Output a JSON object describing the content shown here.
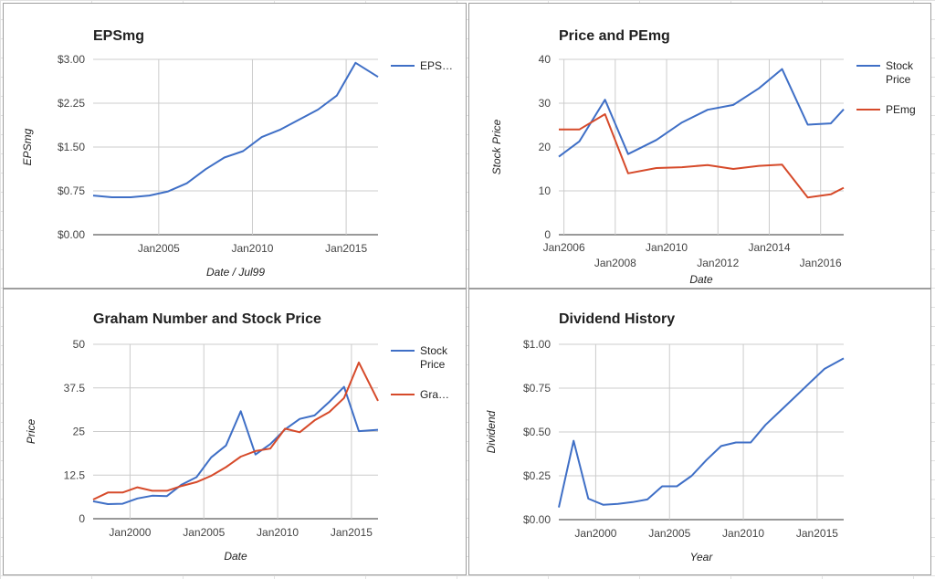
{
  "chart_data": [
    {
      "type": "line",
      "title": "EPSmg",
      "xlabel": "Date / Jul99",
      "ylabel": "EPSmg",
      "xlim": [
        2001.5,
        2016.7
      ],
      "ylim": [
        0,
        3
      ],
      "xticks": [
        {
          "v": 2005,
          "label": "Jan2005"
        },
        {
          "v": 2010,
          "label": "Jan2010"
        },
        {
          "v": 2015,
          "label": "Jan2015"
        }
      ],
      "yticks": [
        {
          "v": 0,
          "label": "$0.00"
        },
        {
          "v": 0.75,
          "label": "$0.75"
        },
        {
          "v": 1.5,
          "label": "$1.50"
        },
        {
          "v": 2.25,
          "label": "$2.25"
        },
        {
          "v": 3,
          "label": "$3.00"
        }
      ],
      "grid": true,
      "legend": "right",
      "series": [
        {
          "name": "EPS…",
          "color": "#3f6fc6",
          "points": [
            [
              2001.5,
              0.67
            ],
            [
              2002.5,
              0.64
            ],
            [
              2003.5,
              0.64
            ],
            [
              2004.5,
              0.67
            ],
            [
              2005.5,
              0.74
            ],
            [
              2006.5,
              0.88
            ],
            [
              2007.5,
              1.12
            ],
            [
              2008.5,
              1.32
            ],
            [
              2009.5,
              1.43
            ],
            [
              2010.5,
              1.67
            ],
            [
              2011.5,
              1.8
            ],
            [
              2012.5,
              1.97
            ],
            [
              2013.5,
              2.14
            ],
            [
              2014.5,
              2.38
            ],
            [
              2015.5,
              2.94
            ],
            [
              2016.7,
              2.7
            ]
          ]
        }
      ]
    },
    {
      "type": "line",
      "title": "Price and PEmg",
      "xlabel": "Date",
      "ylabel": "Stock Price",
      "xlim": [
        2005.8,
        2016.9
      ],
      "ylim": [
        0,
        40
      ],
      "xticks": [
        {
          "v": 2006,
          "label": "Jan2006",
          "row": 0
        },
        {
          "v": 2008,
          "label": "Jan2008",
          "row": 1
        },
        {
          "v": 2010,
          "label": "Jan2010",
          "row": 0
        },
        {
          "v": 2012,
          "label": "Jan2012",
          "row": 1
        },
        {
          "v": 2014,
          "label": "Jan2014",
          "row": 0
        },
        {
          "v": 2016,
          "label": "Jan2016",
          "row": 1
        }
      ],
      "yticks": [
        {
          "v": 0,
          "label": "0"
        },
        {
          "v": 10,
          "label": "10"
        },
        {
          "v": 20,
          "label": "20"
        },
        {
          "v": 30,
          "label": "30"
        },
        {
          "v": 40,
          "label": "40"
        }
      ],
      "grid": true,
      "legend": "right",
      "series": [
        {
          "name": "Stock Price",
          "color": "#3f6fc6",
          "points": [
            [
              2005.8,
              17.8
            ],
            [
              2006.6,
              21.3
            ],
            [
              2007.6,
              30.8
            ],
            [
              2008.5,
              18.4
            ],
            [
              2009.6,
              21.6
            ],
            [
              2010.6,
              25.6
            ],
            [
              2011.6,
              28.5
            ],
            [
              2012.6,
              29.6
            ],
            [
              2013.6,
              33.4
            ],
            [
              2014.5,
              37.8
            ],
            [
              2015.5,
              25.1
            ],
            [
              2016.4,
              25.4
            ],
            [
              2016.9,
              28.6
            ]
          ]
        },
        {
          "name": "PEmg",
          "color": "#d64a2a",
          "points": [
            [
              2005.8,
              24.0
            ],
            [
              2006.6,
              24.0
            ],
            [
              2007.6,
              27.5
            ],
            [
              2008.5,
              14.0
            ],
            [
              2009.6,
              15.2
            ],
            [
              2010.6,
              15.4
            ],
            [
              2011.6,
              15.9
            ],
            [
              2012.6,
              15.0
            ],
            [
              2013.6,
              15.7
            ],
            [
              2014.5,
              16.0
            ],
            [
              2015.5,
              8.5
            ],
            [
              2016.4,
              9.2
            ],
            [
              2016.9,
              10.7
            ]
          ]
        }
      ]
    },
    {
      "type": "line",
      "title": "Graham Number and Stock Price",
      "xlabel": "Date",
      "ylabel": "Price",
      "xlim": [
        1997.5,
        2016.8
      ],
      "ylim": [
        0,
        50
      ],
      "xticks": [
        {
          "v": 2000,
          "label": "Jan2000"
        },
        {
          "v": 2005,
          "label": "Jan2005"
        },
        {
          "v": 2010,
          "label": "Jan2010"
        },
        {
          "v": 2015,
          "label": "Jan2015"
        }
      ],
      "yticks": [
        {
          "v": 0,
          "label": "0"
        },
        {
          "v": 12.5,
          "label": "12.5"
        },
        {
          "v": 25,
          "label": "25"
        },
        {
          "v": 37.5,
          "label": "37.5"
        },
        {
          "v": 50,
          "label": "50"
        }
      ],
      "grid": true,
      "legend": "right",
      "series": [
        {
          "name": "Stock Price",
          "color": "#3f6fc6",
          "points": [
            [
              1997.5,
              5.0
            ],
            [
              1998.5,
              4.2
            ],
            [
              1999.5,
              4.3
            ],
            [
              2000.5,
              5.8
            ],
            [
              2001.5,
              6.6
            ],
            [
              2002.5,
              6.5
            ],
            [
              2003.5,
              9.8
            ],
            [
              2004.5,
              11.9
            ],
            [
              2005.5,
              17.6
            ],
            [
              2006.5,
              21.0
            ],
            [
              2007.5,
              30.8
            ],
            [
              2008.5,
              18.4
            ],
            [
              2009.5,
              21.4
            ],
            [
              2010.5,
              25.6
            ],
            [
              2011.5,
              28.6
            ],
            [
              2012.5,
              29.6
            ],
            [
              2013.5,
              33.5
            ],
            [
              2014.5,
              37.8
            ],
            [
              2015.5,
              25.1
            ],
            [
              2016.8,
              25.5
            ]
          ]
        },
        {
          "name": "Gra…",
          "color": "#d64a2a",
          "points": [
            [
              1997.5,
              5.5
            ],
            [
              1998.5,
              7.5
            ],
            [
              1999.5,
              7.5
            ],
            [
              2000.5,
              9.0
            ],
            [
              2001.5,
              8.0
            ],
            [
              2002.5,
              8.0
            ],
            [
              2003.5,
              9.4
            ],
            [
              2004.5,
              10.5
            ],
            [
              2005.5,
              12.3
            ],
            [
              2006.5,
              14.8
            ],
            [
              2007.5,
              17.8
            ],
            [
              2008.5,
              19.4
            ],
            [
              2009.5,
              20.1
            ],
            [
              2010.5,
              25.8
            ],
            [
              2011.5,
              24.8
            ],
            [
              2012.5,
              28.2
            ],
            [
              2013.5,
              30.6
            ],
            [
              2014.5,
              34.6
            ],
            [
              2015.5,
              44.8
            ],
            [
              2016.8,
              33.8
            ]
          ]
        }
      ]
    },
    {
      "type": "line",
      "title": "Dividend History",
      "xlabel": "Year",
      "ylabel": "Dividend",
      "xlim": [
        1997.5,
        2016.8
      ],
      "ylim": [
        0,
        1
      ],
      "xticks": [
        {
          "v": 2000,
          "label": "Jan2000"
        },
        {
          "v": 2005,
          "label": "Jan2005"
        },
        {
          "v": 2010,
          "label": "Jan2010"
        },
        {
          "v": 2015,
          "label": "Jan2015"
        }
      ],
      "yticks": [
        {
          "v": 0,
          "label": "$0.00"
        },
        {
          "v": 0.25,
          "label": "$0.25"
        },
        {
          "v": 0.5,
          "label": "$0.50"
        },
        {
          "v": 0.75,
          "label": "$0.75"
        },
        {
          "v": 1,
          "label": "$1.00"
        }
      ],
      "grid": true,
      "legend": "none",
      "series": [
        {
          "name": "",
          "color": "#3f6fc6",
          "points": [
            [
              1997.5,
              0.07
            ],
            [
              1998.5,
              0.45
            ],
            [
              1999.5,
              0.12
            ],
            [
              2000.5,
              0.085
            ],
            [
              2001.5,
              0.09
            ],
            [
              2002.5,
              0.1
            ],
            [
              2003.5,
              0.115
            ],
            [
              2004.5,
              0.19
            ],
            [
              2005.5,
              0.19
            ],
            [
              2006.5,
              0.25
            ],
            [
              2007.5,
              0.34
            ],
            [
              2008.5,
              0.42
            ],
            [
              2009.5,
              0.44
            ],
            [
              2010.5,
              0.44
            ],
            [
              2011.5,
              0.54
            ],
            [
              2012.5,
              0.62
            ],
            [
              2013.5,
              0.7
            ],
            [
              2014.5,
              0.78
            ],
            [
              2015.5,
              0.86
            ],
            [
              2016.8,
              0.92
            ]
          ]
        }
      ]
    }
  ]
}
